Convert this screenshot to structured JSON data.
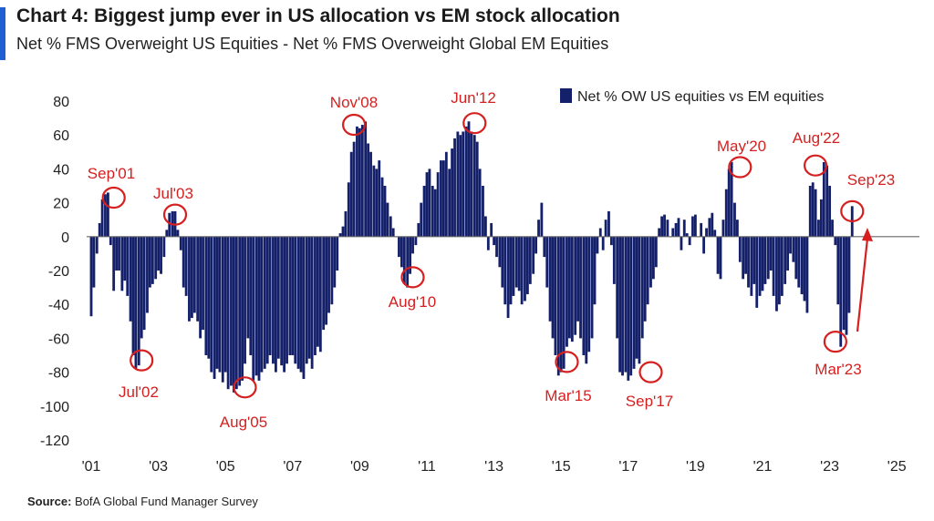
{
  "header": {
    "title": "Chart 4: Biggest jump ever in US allocation vs EM stock allocation",
    "subtitle": "Net % FMS Overweight US Equities - Net % FMS Overweight Global EM Equities"
  },
  "footer": {
    "source_label": "Source:",
    "source_text": "BofA Global Fund Manager Survey"
  },
  "colors": {
    "bars": "#14206a",
    "annotation": "#d61f1f",
    "accent": "#1f5fd1",
    "zero_line": "#666666"
  },
  "chart_data": {
    "type": "bar",
    "ylim": [
      -120,
      80
    ],
    "yticks": [
      80,
      60,
      40,
      20,
      0,
      -20,
      -40,
      -60,
      -80,
      -100,
      -120
    ],
    "xlim": [
      2001.0,
      2025.6
    ],
    "xticks": [
      {
        "value": 2001,
        "label": "'01"
      },
      {
        "value": 2003,
        "label": "'03"
      },
      {
        "value": 2005,
        "label": "'05"
      },
      {
        "value": 2007,
        "label": "'07"
      },
      {
        "value": 2009,
        "label": "'09"
      },
      {
        "value": 2011,
        "label": "'11"
      },
      {
        "value": 2013,
        "label": "'13"
      },
      {
        "value": 2015,
        "label": "'15"
      },
      {
        "value": 2017,
        "label": "'17"
      },
      {
        "value": 2019,
        "label": "'19"
      },
      {
        "value": 2021,
        "label": "'21"
      },
      {
        "value": 2023,
        "label": "'23"
      },
      {
        "value": 2025,
        "label": "'25"
      }
    ],
    "grid": false,
    "legend_position": "top-right",
    "series": [
      {
        "name": "Net % OW US equities vs EM equities",
        "x": [
          2001.0,
          2001.08,
          2001.17,
          2001.25,
          2001.33,
          2001.42,
          2001.5,
          2001.58,
          2001.67,
          2001.75,
          2001.83,
          2001.92,
          2002.0,
          2002.08,
          2002.17,
          2002.25,
          2002.33,
          2002.42,
          2002.5,
          2002.58,
          2002.67,
          2002.75,
          2002.83,
          2002.92,
          2003.0,
          2003.08,
          2003.17,
          2003.25,
          2003.33,
          2003.42,
          2003.5,
          2003.58,
          2003.67,
          2003.75,
          2003.83,
          2003.92,
          2004.0,
          2004.08,
          2004.17,
          2004.25,
          2004.33,
          2004.42,
          2004.5,
          2004.58,
          2004.67,
          2004.75,
          2004.83,
          2004.92,
          2005.0,
          2005.08,
          2005.17,
          2005.25,
          2005.33,
          2005.42,
          2005.5,
          2005.58,
          2005.67,
          2005.75,
          2005.83,
          2005.92,
          2006.0,
          2006.08,
          2006.17,
          2006.25,
          2006.33,
          2006.42,
          2006.5,
          2006.58,
          2006.67,
          2006.75,
          2006.83,
          2006.92,
          2007.0,
          2007.08,
          2007.17,
          2007.25,
          2007.33,
          2007.42,
          2007.5,
          2007.58,
          2007.67,
          2007.75,
          2007.83,
          2007.92,
          2008.0,
          2008.08,
          2008.17,
          2008.25,
          2008.33,
          2008.42,
          2008.5,
          2008.58,
          2008.67,
          2008.75,
          2008.83,
          2008.92,
          2009.0,
          2009.08,
          2009.17,
          2009.25,
          2009.33,
          2009.42,
          2009.5,
          2009.58,
          2009.67,
          2009.75,
          2009.83,
          2009.92,
          2010.0,
          2010.08,
          2010.17,
          2010.25,
          2010.33,
          2010.42,
          2010.5,
          2010.58,
          2010.67,
          2010.75,
          2010.83,
          2010.92,
          2011.0,
          2011.08,
          2011.17,
          2011.25,
          2011.33,
          2011.42,
          2011.5,
          2011.58,
          2011.67,
          2011.75,
          2011.83,
          2011.92,
          2012.0,
          2012.08,
          2012.17,
          2012.25,
          2012.33,
          2012.42,
          2012.5,
          2012.58,
          2012.67,
          2012.75,
          2012.83,
          2012.92,
          2013.0,
          2013.08,
          2013.17,
          2013.25,
          2013.33,
          2013.42,
          2013.5,
          2013.58,
          2013.67,
          2013.75,
          2013.83,
          2013.92,
          2014.0,
          2014.08,
          2014.17,
          2014.25,
          2014.33,
          2014.42,
          2014.5,
          2014.58,
          2014.67,
          2014.75,
          2014.83,
          2014.92,
          2015.0,
          2015.08,
          2015.17,
          2015.25,
          2015.33,
          2015.42,
          2015.5,
          2015.58,
          2015.67,
          2015.75,
          2015.83,
          2015.92,
          2016.0,
          2016.08,
          2016.17,
          2016.25,
          2016.33,
          2016.42,
          2016.5,
          2016.58,
          2016.67,
          2016.75,
          2016.83,
          2016.92,
          2017.0,
          2017.08,
          2017.17,
          2017.25,
          2017.33,
          2017.42,
          2017.5,
          2017.58,
          2017.67,
          2017.75,
          2017.83,
          2017.92,
          2018.0,
          2018.08,
          2018.17,
          2018.25,
          2018.33,
          2018.42,
          2018.5,
          2018.58,
          2018.67,
          2018.75,
          2018.83,
          2018.92,
          2019.0,
          2019.08,
          2019.17,
          2019.25,
          2019.33,
          2019.42,
          2019.5,
          2019.58,
          2019.67,
          2019.75,
          2019.83,
          2019.92,
          2020.0,
          2020.08,
          2020.17,
          2020.25,
          2020.33,
          2020.42,
          2020.5,
          2020.58,
          2020.67,
          2020.75,
          2020.83,
          2020.92,
          2021.0,
          2021.08,
          2021.17,
          2021.25,
          2021.33,
          2021.42,
          2021.5,
          2021.58,
          2021.67,
          2021.75,
          2021.83,
          2021.92,
          2022.0,
          2022.08,
          2022.17,
          2022.25,
          2022.33,
          2022.42,
          2022.5,
          2022.58,
          2022.67,
          2022.75,
          2022.83,
          2022.92,
          2023.0,
          2023.08,
          2023.17,
          2023.25,
          2023.33,
          2023.42,
          2023.5,
          2023.58,
          2023.67
        ],
        "values": [
          -47,
          -30,
          -10,
          8,
          22,
          25,
          26,
          -5,
          -32,
          -20,
          -20,
          -32,
          -26,
          -35,
          -50,
          -70,
          -78,
          -76,
          -60,
          -55,
          -45,
          -30,
          -28,
          -25,
          -20,
          -22,
          -12,
          4,
          14,
          15,
          15,
          4,
          -8,
          -30,
          -35,
          -50,
          -48,
          -45,
          -50,
          -60,
          -55,
          -70,
          -72,
          -80,
          -84,
          -78,
          -80,
          -86,
          -80,
          -90,
          -88,
          -92,
          -90,
          -88,
          -85,
          -75,
          -60,
          -70,
          -85,
          -82,
          -85,
          -80,
          -78,
          -75,
          -70,
          -75,
          -80,
          -72,
          -76,
          -80,
          -75,
          -70,
          -70,
          -75,
          -78,
          -80,
          -84,
          -75,
          -72,
          -78,
          -70,
          -65,
          -68,
          -55,
          -52,
          -45,
          -40,
          -30,
          -20,
          2,
          6,
          15,
          32,
          50,
          56,
          65,
          64,
          66,
          68,
          55,
          50,
          42,
          40,
          45,
          35,
          30,
          20,
          12,
          5,
          0,
          -12,
          -18,
          -28,
          -30,
          -22,
          -10,
          -5,
          8,
          20,
          30,
          38,
          40,
          30,
          28,
          38,
          45,
          45,
          50,
          40,
          52,
          58,
          62,
          60,
          62,
          65,
          68,
          62,
          60,
          56,
          40,
          30,
          12,
          -8,
          8,
          -5,
          -12,
          -18,
          -30,
          -40,
          -48,
          -40,
          -35,
          -30,
          -32,
          -40,
          -38,
          -34,
          -28,
          -22,
          -10,
          10,
          20,
          -12,
          -30,
          -50,
          -60,
          -70,
          -82,
          -80,
          -78,
          -65,
          -60,
          -62,
          -58,
          -50,
          -60,
          -70,
          -75,
          -68,
          -60,
          -40,
          -10,
          5,
          -8,
          10,
          15,
          -5,
          -28,
          -60,
          -80,
          -82,
          -80,
          -85,
          -82,
          -78,
          -72,
          -75,
          -60,
          -50,
          -40,
          -30,
          -25,
          -18,
          5,
          12,
          13,
          10,
          0,
          5,
          8,
          11,
          -8,
          10,
          2,
          -5,
          12,
          13,
          0,
          8,
          -10,
          5,
          11,
          14,
          4,
          -22,
          -25,
          10,
          28,
          40,
          44,
          20,
          10,
          -15,
          -25,
          -22,
          -30,
          -35,
          -28,
          -42,
          -35,
          -32,
          -28,
          -25,
          -20,
          -35,
          -44,
          -40,
          -35,
          -28,
          -20,
          -10,
          -15,
          -25,
          -30,
          -34,
          -38,
          -45,
          30,
          32,
          28,
          10,
          22,
          44,
          42,
          30,
          10,
          -5,
          -40,
          -65,
          -55,
          -58,
          -45,
          18
        ]
      }
    ],
    "annotations": [
      {
        "label": "Sep'01",
        "x": 2001.67,
        "y": 23
      },
      {
        "label": "Jul'02",
        "x": 2002.5,
        "y": -73
      },
      {
        "label": "Jul'03",
        "x": 2003.5,
        "y": 13
      },
      {
        "label": "Aug'05",
        "x": 2005.58,
        "y": -89
      },
      {
        "label": "Nov'08",
        "x": 2008.83,
        "y": 66
      },
      {
        "label": "Aug'10",
        "x": 2010.58,
        "y": -24
      },
      {
        "label": "Jun'12",
        "x": 2012.42,
        "y": 67
      },
      {
        "label": "Mar'15",
        "x": 2015.17,
        "y": -74
      },
      {
        "label": "Sep'17",
        "x": 2017.67,
        "y": -80
      },
      {
        "label": "May'20",
        "x": 2020.33,
        "y": 41
      },
      {
        "label": "Aug'22",
        "x": 2022.58,
        "y": 42
      },
      {
        "label": "Sep'23",
        "x": 2023.67,
        "y": 15
      },
      {
        "label": "Mar'23",
        "x": 2023.17,
        "y": -62
      }
    ]
  }
}
